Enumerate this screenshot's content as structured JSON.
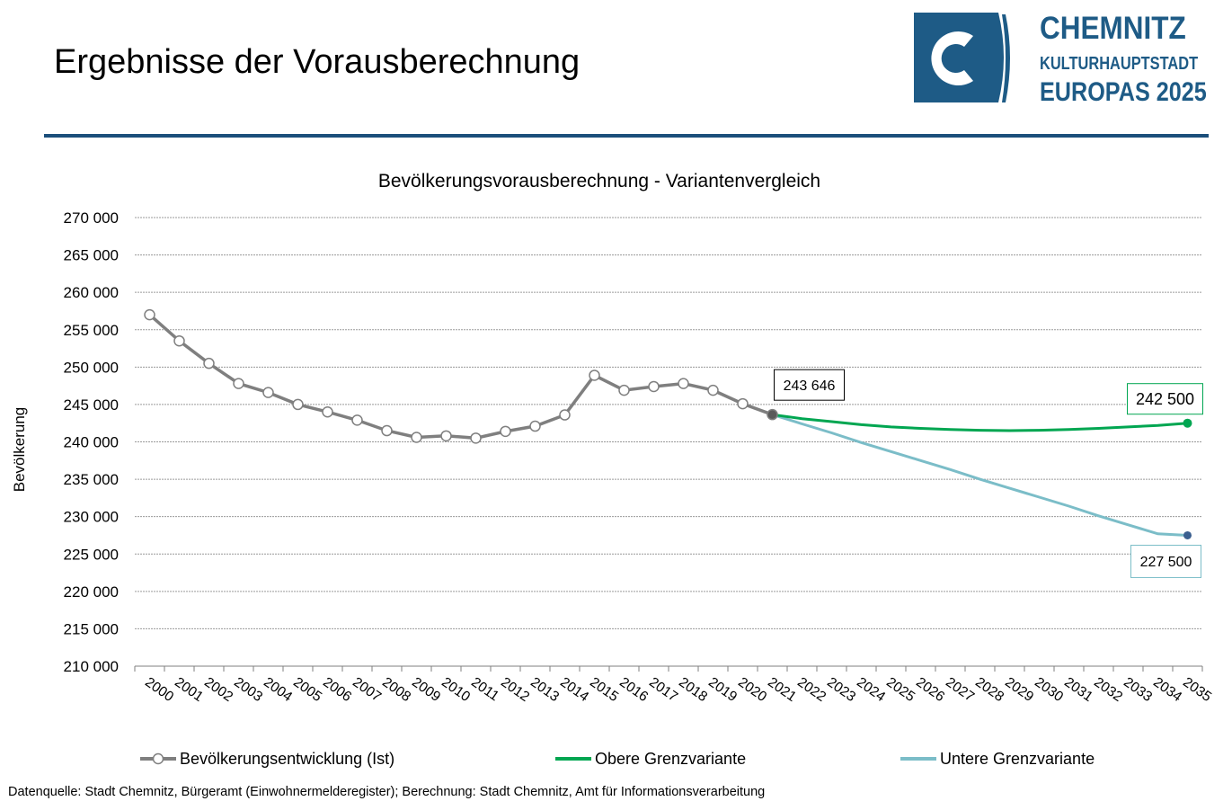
{
  "page": {
    "title": "Ergebnisse der Vorausberechnung",
    "source_note": "Datenquelle: Stadt Chemnitz, Bürgeramt (Einwohnermelderegister); Berechnung: Stadt Chemnitz, Amt für Informationsverarbeitung"
  },
  "logo": {
    "line1": "CHEMNITZ",
    "line2": "KULTURHAUPTSTADT",
    "line3": "EUROPAS 2025",
    "color": "#1e5b86"
  },
  "chart_data": {
    "type": "line",
    "title": "Bevölkerungsvorausberechnung - Variantenvergleich",
    "xlabel": "",
    "ylabel": "Bevölkerung",
    "ylim": [
      210000,
      270000
    ],
    "y_ticks": [
      270000,
      265000,
      260000,
      255000,
      250000,
      245000,
      240000,
      235000,
      230000,
      225000,
      220000,
      215000,
      210000
    ],
    "y_tick_labels": [
      "270 000",
      "265 000",
      "260 000",
      "255 000",
      "250 000",
      "245 000",
      "240 000",
      "235 000",
      "230 000",
      "225 000",
      "220 000",
      "215 000",
      "210 000"
    ],
    "categories": [
      "2000",
      "2001",
      "2002",
      "2003",
      "2004",
      "2005",
      "2006",
      "2007",
      "2008",
      "2009",
      "2010",
      "2011",
      "2012",
      "2013",
      "2014",
      "2015",
      "2016",
      "2017",
      "2018",
      "2019",
      "2020",
      "2021",
      "2022",
      "2023",
      "2024",
      "2025",
      "2026",
      "2027",
      "2028",
      "2029",
      "2030",
      "2031",
      "2032",
      "2033",
      "2034",
      "2035"
    ],
    "grid": true,
    "legend_position": "bottom",
    "series": [
      {
        "name": "Bevölkerungsentwicklung (Ist)",
        "color": "#7f7f7f",
        "marker": "circle",
        "values": [
          257000,
          253500,
          250500,
          247800,
          246600,
          245000,
          244000,
          242900,
          241500,
          240600,
          240800,
          240500,
          241400,
          242100,
          243600,
          248900,
          246900,
          247400,
          247800,
          246900,
          245100,
          243646,
          null,
          null,
          null,
          null,
          null,
          null,
          null,
          null,
          null,
          null,
          null,
          null,
          null,
          null
        ]
      },
      {
        "name": "Obere Grenzvariante",
        "color": "#00a651",
        "marker": "none",
        "values": [
          null,
          null,
          null,
          null,
          null,
          null,
          null,
          null,
          null,
          null,
          null,
          null,
          null,
          null,
          null,
          null,
          null,
          null,
          null,
          null,
          null,
          243646,
          243100,
          242700,
          242300,
          242000,
          241800,
          241650,
          241550,
          241500,
          241550,
          241650,
          241800,
          242000,
          242200,
          242500
        ]
      },
      {
        "name": "Untere Grenzvariante",
        "color": "#7bbdc8",
        "marker": "none",
        "values": [
          null,
          null,
          null,
          null,
          null,
          null,
          null,
          null,
          null,
          null,
          null,
          null,
          null,
          null,
          null,
          null,
          null,
          null,
          null,
          null,
          null,
          243646,
          242400,
          241200,
          239900,
          238700,
          237500,
          236300,
          235000,
          233800,
          232600,
          231400,
          230100,
          228900,
          227700,
          227500
        ]
      }
    ],
    "annotations": [
      {
        "label": "243 646",
        "x": "2021",
        "value": 243646,
        "border_color": "#000000"
      },
      {
        "label": "242 500",
        "x": "2035",
        "value": 242500,
        "border_color": "#00a651"
      },
      {
        "label": "227 500",
        "x": "2035",
        "value": 227500,
        "border_color": "#7bbdc8"
      }
    ],
    "endpoint_colors": {
      "ist": "#5a5a5a",
      "obere": "#00a651",
      "untere": "#3b5f8f"
    }
  }
}
